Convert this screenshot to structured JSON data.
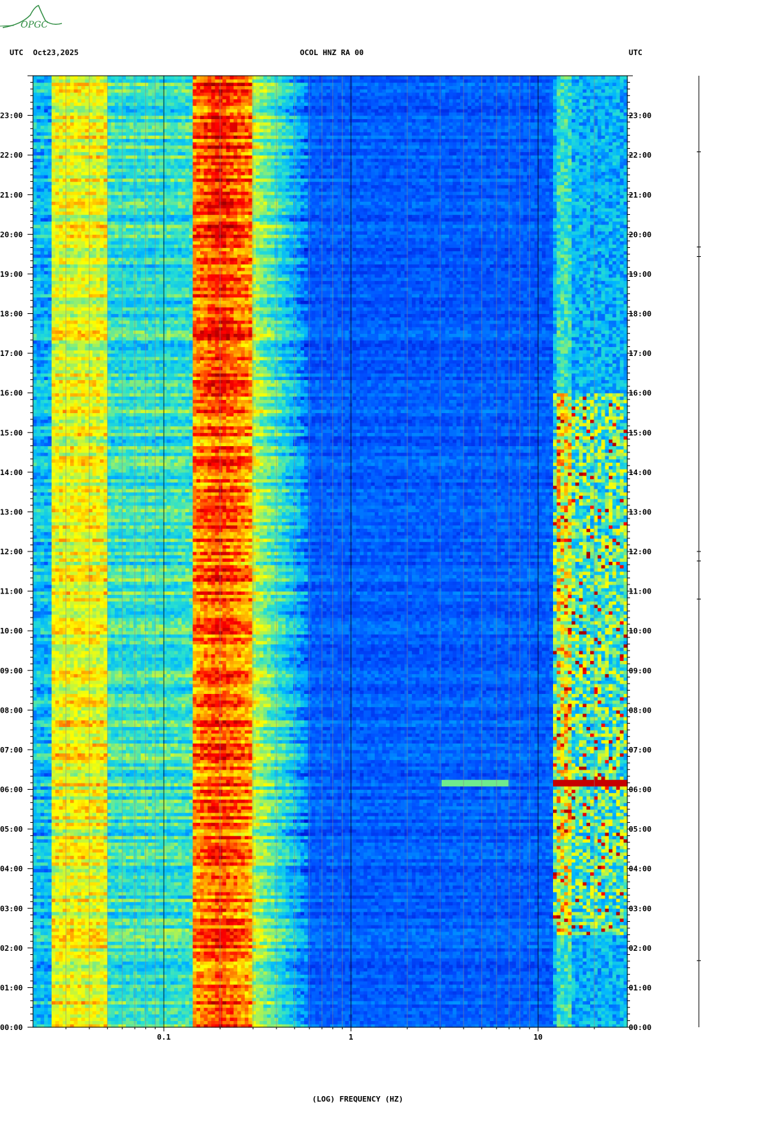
{
  "header": {
    "left_tz": "UTC",
    "date": "Oct23,2025",
    "station": "OCOL HNZ RA 00",
    "right_tz": "UTC"
  },
  "logo": {
    "text": "OPGC",
    "color": "#2b8a3e"
  },
  "chart_data": {
    "type": "heatmap",
    "title": "OCOL HNZ RA 00",
    "xlabel": "(LOG) FREQUENCY (HZ)",
    "ylabel": "",
    "x_scale": "log",
    "xlim": [
      0.02,
      30
    ],
    "ylim": [
      "00:00",
      "24:00"
    ],
    "x_ticks": [
      {
        "value": 0.1,
        "label": "0.1"
      },
      {
        "value": 1,
        "label": "1"
      },
      {
        "value": 10,
        "label": "10"
      }
    ],
    "y_ticks": [
      "00:00",
      "01:00",
      "02:00",
      "03:00",
      "04:00",
      "05:00",
      "06:00",
      "07:00",
      "08:00",
      "09:00",
      "10:00",
      "11:00",
      "12:00",
      "13:00",
      "14:00",
      "15:00",
      "16:00",
      "17:00",
      "18:00",
      "19:00",
      "20:00",
      "21:00",
      "22:00",
      "23:00"
    ],
    "colormap": [
      "#0000c8",
      "#0050ff",
      "#00b4ff",
      "#28e0d0",
      "#a0f060",
      "#ffff00",
      "#ff9600",
      "#ff0000",
      "#a00000"
    ],
    "features": [
      {
        "name": "microseism band",
        "freq_range_hz": [
          0.14,
          0.3
        ],
        "level": 0.82
      },
      {
        "name": "low-frequency band",
        "freq_range_hz": [
          0.025,
          0.05
        ],
        "level": 0.6
      },
      {
        "name": "cultural noise band",
        "freq_range_hz": [
          12,
          30
        ],
        "hours": [
          2.3,
          16
        ],
        "level": 0.6
      },
      {
        "name": "event",
        "time": "06:10",
        "freq_range_hz": [
          12,
          30
        ],
        "level": 0.95
      }
    ]
  }
}
